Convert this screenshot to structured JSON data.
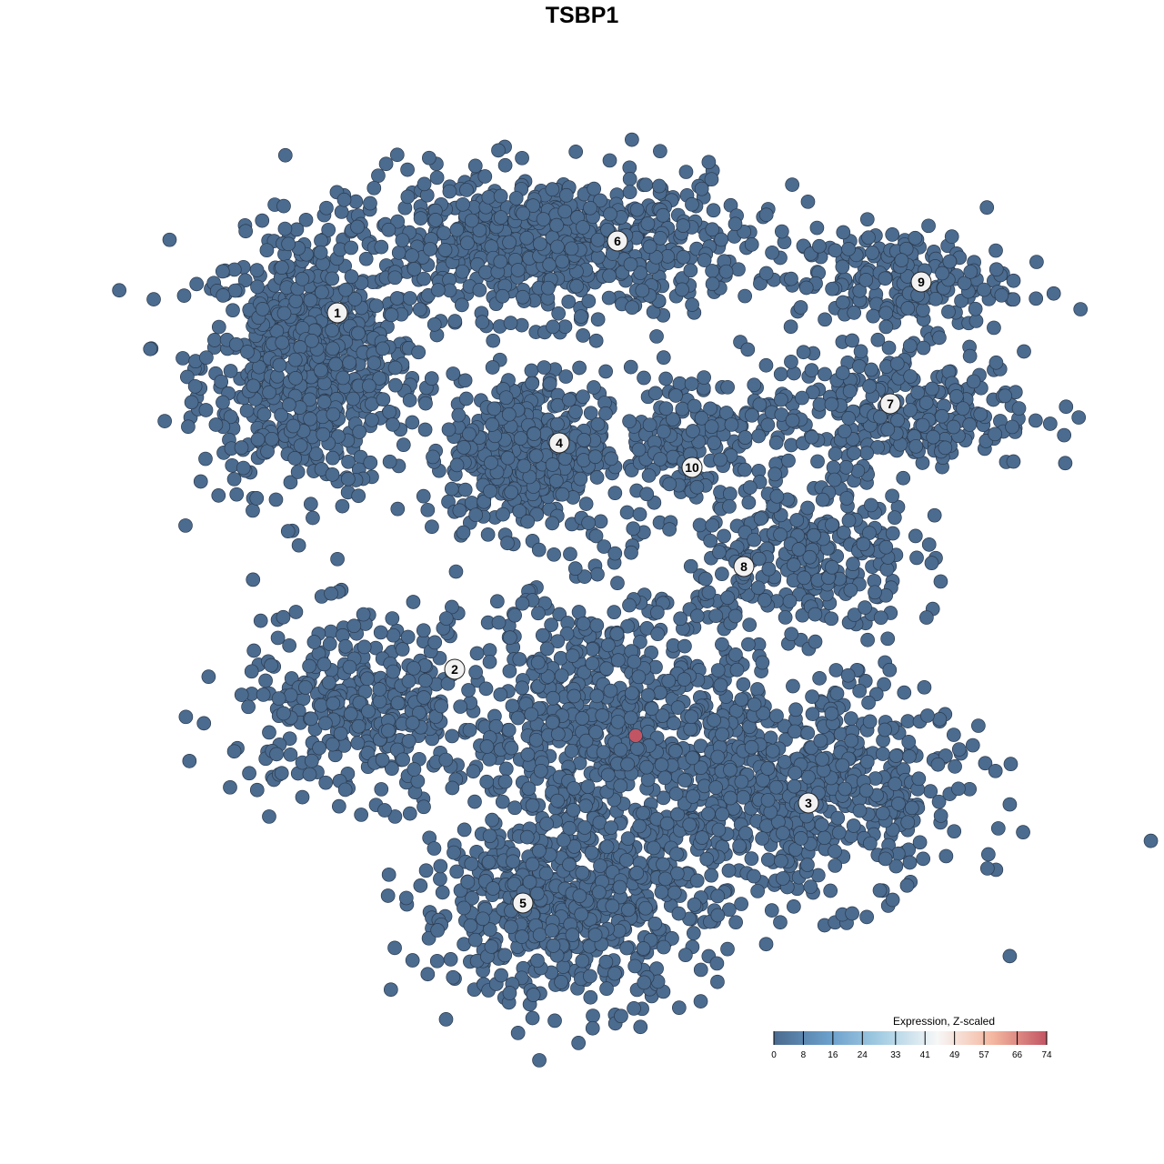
{
  "chart_data": {
    "type": "scatter",
    "title": "TSBP1",
    "xlabel": "",
    "ylabel": "",
    "axes_visible": false,
    "grid": false,
    "point_color_low": "#4b6b8f",
    "point_color_high": "#c25563",
    "clusters": [
      {
        "label": "1",
        "label_pos": [
          -26.9,
          29.6
        ],
        "components": [
          {
            "center": [
              -30,
              24
            ],
            "spread": [
              6,
              7
            ],
            "n": 700
          }
        ]
      },
      {
        "label": "6",
        "label_pos": [
          3.9,
          37.5
        ],
        "components": [
          {
            "center": [
              -4,
              37
            ],
            "spread": [
              11,
              4
            ],
            "n": 700
          }
        ]
      },
      {
        "label": "4",
        "label_pos": [
          -2.5,
          15.3
        ],
        "components": [
          {
            "center": [
              -6,
              14.5
            ],
            "spread": [
              4.3,
              4.3
            ],
            "n": 450
          }
        ]
      },
      {
        "label": "10",
        "label_pos": [
          12.1,
          12.6
        ],
        "components": [
          {
            "center": [
              11,
              16
            ],
            "spread": [
              4,
              3.5
            ],
            "n": 150
          }
        ]
      },
      {
        "label": "9",
        "label_pos": [
          37.3,
          33
        ],
        "components": [
          {
            "center": [
              35,
              33
            ],
            "spread": [
              6,
              3
            ],
            "n": 200
          }
        ]
      },
      {
        "label": "7",
        "label_pos": [
          33.9,
          19.6
        ],
        "components": [
          {
            "center": [
              34,
              19
            ],
            "spread": [
              8,
              3.5
            ],
            "n": 300
          }
        ]
      },
      {
        "label": "8",
        "label_pos": [
          17.8,
          1.7
        ],
        "components": [
          {
            "center": [
              24,
              3
            ],
            "spread": [
              6,
              5
            ],
            "n": 300
          }
        ]
      },
      {
        "label": "2",
        "label_pos": [
          -14,
          -9.6
        ],
        "components": [
          {
            "center": [
              -24,
              -14
            ],
            "spread": [
              7,
              5
            ],
            "n": 350
          }
        ]
      },
      {
        "label": "3",
        "label_pos": [
          24.9,
          -24.3
        ],
        "components": [
          {
            "center": [
              24,
              -23
            ],
            "spread": [
              9,
              6
            ],
            "n": 600
          }
        ]
      },
      {
        "label": "5",
        "label_pos": [
          -6.5,
          -35.3
        ],
        "components": [
          {
            "center": [
              -2,
              -36
            ],
            "spread": [
              8,
              5
            ],
            "n": 600
          },
          {
            "center": [
              3,
              -16
            ],
            "spread": [
              8,
              8
            ],
            "n": 700
          }
        ]
      }
    ],
    "highlighted_points": [
      {
        "x": 5.9,
        "y": -16.9,
        "value": 74
      }
    ],
    "base_value": 0,
    "legend": {
      "title": "Expression, Z-scaled",
      "position": "bottom-right",
      "ticks": [
        "0",
        "8",
        "16",
        "24",
        "33",
        "41",
        "49",
        "57",
        "66",
        "74"
      ],
      "range": [
        0,
        74
      ],
      "colors": [
        "#4b6b8f",
        "#6a9fcb",
        "#a7cfe4",
        "#f7f7f7",
        "#f4b8a0",
        "#c25563"
      ]
    }
  }
}
